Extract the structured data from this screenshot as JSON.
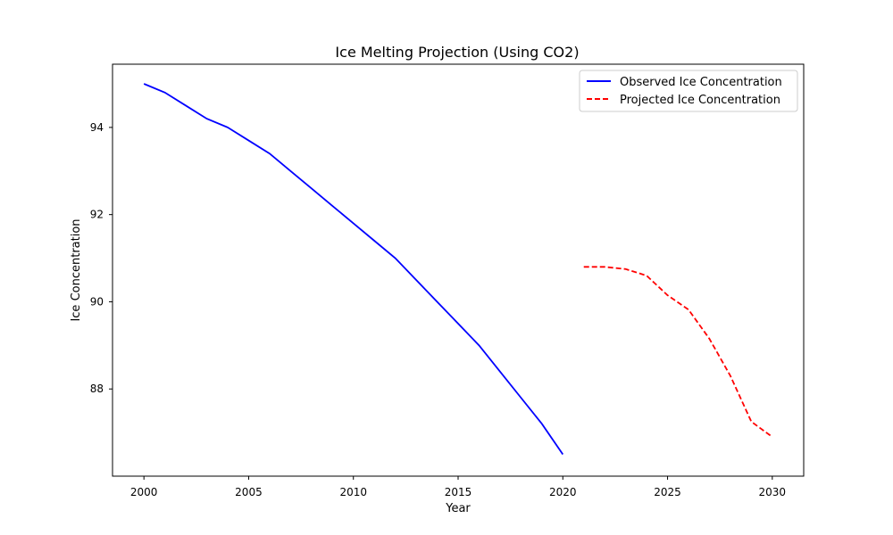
{
  "chart_data": {
    "type": "line",
    "title": "Ice Melting Projection (Using CO2)",
    "xlabel": "Year",
    "ylabel": "Ice Concentration",
    "xlim": [
      1998.5,
      2031.5
    ],
    "ylim": [
      86.0,
      95.45
    ],
    "xticks": [
      2000,
      2005,
      2010,
      2015,
      2020,
      2025,
      2030
    ],
    "yticks": [
      88,
      90,
      92,
      94
    ],
    "grid": false,
    "legend_position": "top-right",
    "series": [
      {
        "name": "Observed Ice Concentration",
        "color": "#0000ff",
        "linestyle": "solid",
        "x": [
          2000,
          2001,
          2002,
          2003,
          2004,
          2005,
          2006,
          2007,
          2008,
          2009,
          2010,
          2011,
          2012,
          2013,
          2014,
          2015,
          2016,
          2017,
          2018,
          2019,
          2020
        ],
        "y": [
          95.0,
          94.8,
          94.5,
          94.2,
          94.0,
          93.7,
          93.4,
          93.0,
          92.6,
          92.2,
          91.8,
          91.4,
          91.0,
          90.5,
          90.0,
          89.5,
          89.0,
          88.4,
          87.8,
          87.2,
          86.5
        ]
      },
      {
        "name": "Projected Ice Concentration",
        "color": "#ff0000",
        "linestyle": "dashed",
        "x": [
          2021,
          2022,
          2023,
          2024,
          2025,
          2026,
          2027,
          2028,
          2029,
          2030
        ],
        "y": [
          90.8,
          90.8,
          90.75,
          90.6,
          90.15,
          89.82,
          89.15,
          88.3,
          87.25,
          86.9
        ]
      }
    ]
  }
}
